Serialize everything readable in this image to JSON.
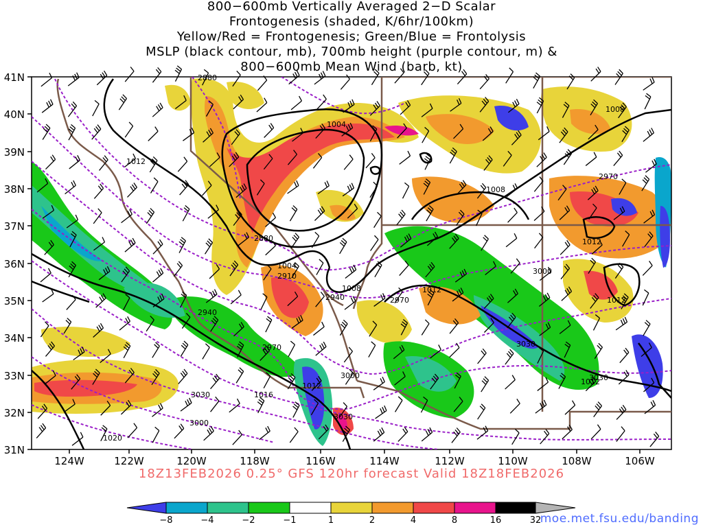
{
  "title": {
    "lines": [
      "800−600mb Vertically Averaged 2−D Scalar",
      "Frontogenesis (shaded, K/6hr/100km)",
      "Yellow/Red = Frontogenesis;  Green/Blue = Frontolysis",
      "MSLP (black contour, mb), 700mb height (purple contour, m) &",
      "800−600mb Mean Wind (barb, kt)"
    ]
  },
  "axes": {
    "lat_labels": [
      "41N",
      "40N",
      "39N",
      "38N",
      "37N",
      "36N",
      "35N",
      "34N",
      "33N",
      "32N",
      "31N"
    ],
    "lon_labels": [
      "124W",
      "122W",
      "120W",
      "118W",
      "116W",
      "114W",
      "112W",
      "110W",
      "108W",
      "106W"
    ]
  },
  "contour_labels": {
    "mslp": [
      "1004",
      "1012",
      "1008",
      "1004",
      "1008",
      "1012",
      "1008",
      "1012",
      "1012",
      "1016",
      "1012",
      "1020",
      "1012",
      "1012"
    ],
    "height": [
      "2880",
      "2880",
      "2970",
      "2910",
      "2940",
      "2940",
      "2970",
      "3000",
      "3030",
      "3000",
      "3030",
      "3030",
      "3000",
      "2970",
      "3030"
    ]
  },
  "footer": "18Z13FEB2026 0.25° GFS 120hr forecast Valid 18Z18FEB2026",
  "colorbar": {
    "ticks": [
      "−8",
      "−4",
      "−2",
      "−1",
      "1",
      "2",
      "4",
      "8",
      "16",
      "32"
    ],
    "colors": [
      "#3e3ee8",
      "#0aa6cc",
      "#2ec38c",
      "#19c819",
      "#ffffff",
      "#e8d43a",
      "#f29a2e",
      "#f04848",
      "#e8148c",
      "#000000",
      "#b4b4b4"
    ]
  },
  "credit": "moe.met.fsu.edu/banding",
  "colors": {
    "mslp": "#000000",
    "height": "#9a1ec8",
    "boundary": "#7a5a4a"
  }
}
